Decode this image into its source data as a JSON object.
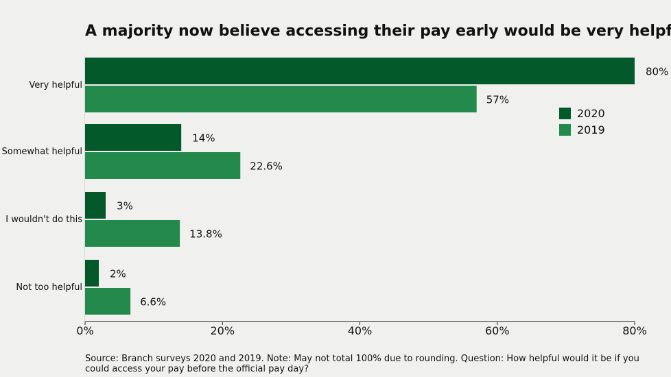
{
  "chart_data": {
    "type": "bar",
    "orientation": "horizontal",
    "title": "A majority now believe accessing their pay early would be very helpful",
    "categories": [
      "Very helpful",
      "Somewhat helpful",
      "I wouldn't do this",
      "Not too helpful"
    ],
    "series": [
      {
        "name": "2020",
        "values": [
          80,
          14,
          3,
          2
        ],
        "labels": [
          "80%",
          "14%",
          "3%",
          "2%"
        ],
        "color": "#03592a"
      },
      {
        "name": "2019",
        "values": [
          57,
          22.6,
          13.8,
          6.6
        ],
        "labels": [
          "57%",
          "22.6%",
          "13.8%",
          "6.6%"
        ],
        "color": "#238a4c"
      }
    ],
    "xlim": [
      0,
      80
    ],
    "xticks": [
      0,
      20,
      40,
      60,
      80
    ],
    "xtick_labels": [
      "0%",
      "20%",
      "40%",
      "60%",
      "80%"
    ],
    "legend_position": "top-right",
    "grid": false
  },
  "footer": {
    "source": "Source: Branch surveys 2020 and 2019. Note: May not total 100% due to rounding. Question: How helpful would it be if you could access your pay before the official pay day?"
  }
}
